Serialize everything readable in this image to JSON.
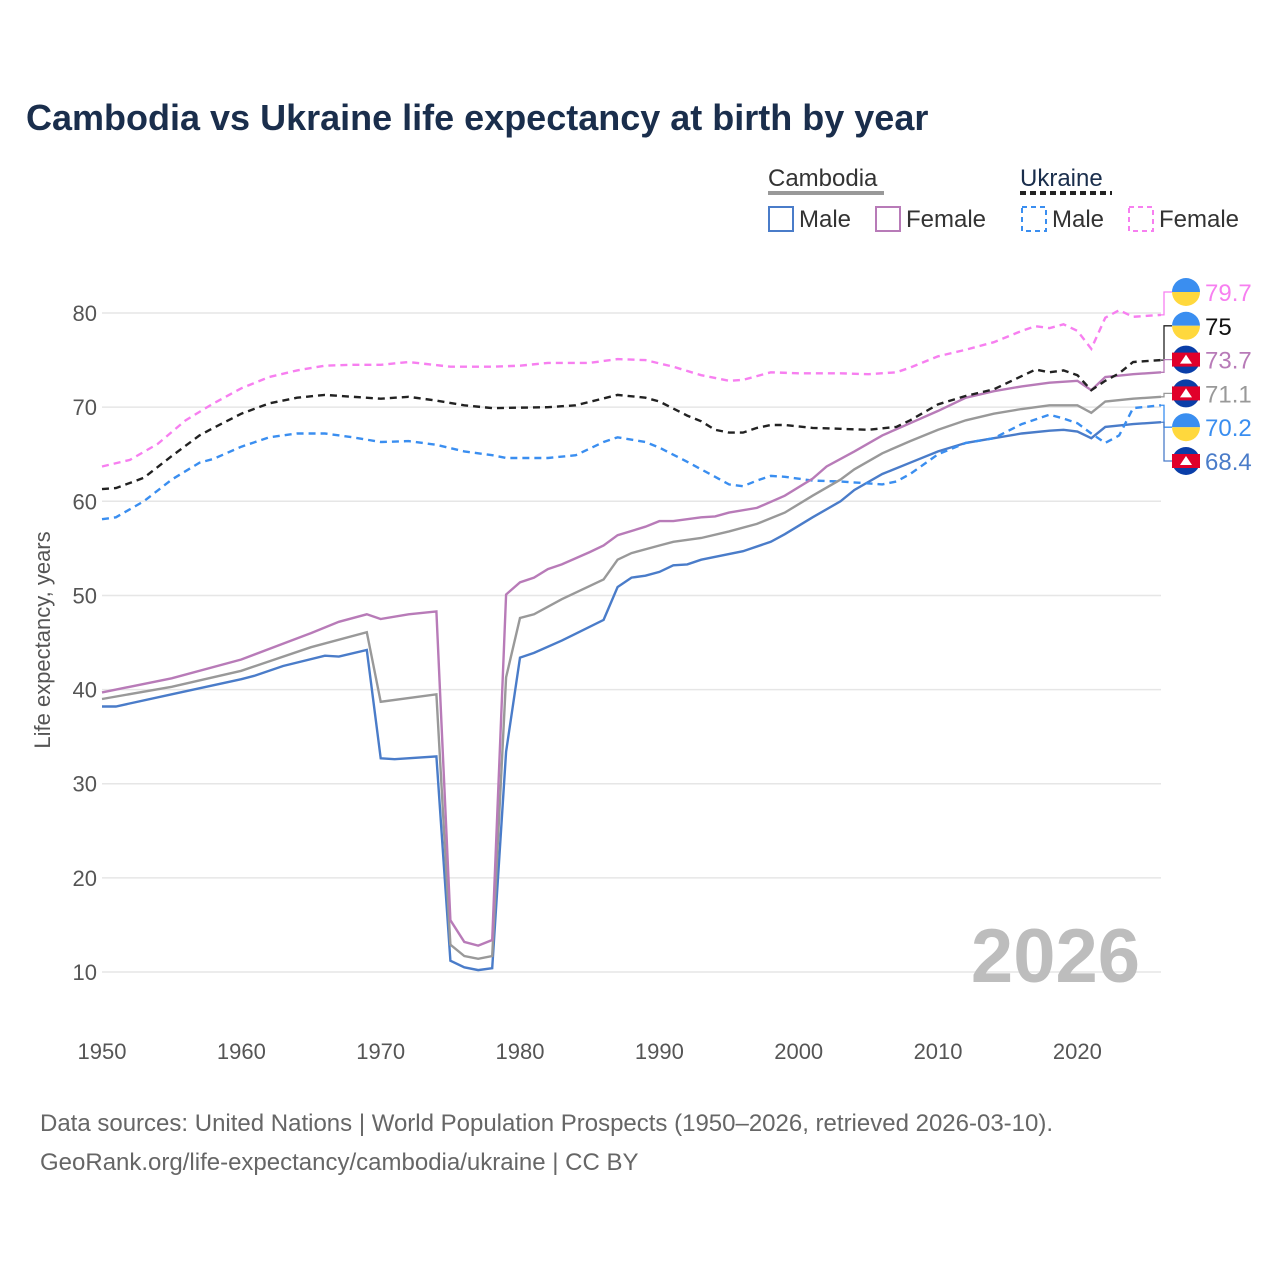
{
  "chart_data": {
    "type": "line",
    "title": "Cambodia vs Ukraine life expectancy at birth by year",
    "ylabel": "Life expectancy, years",
    "xlabel": "",
    "xlim": [
      1950,
      2026
    ],
    "ylim": [
      5,
      85
    ],
    "xticks": [
      "1950",
      "1960",
      "1970",
      "1980",
      "1990",
      "2000",
      "2010",
      "2020"
    ],
    "yticks": [
      "10",
      "20",
      "30",
      "40",
      "50",
      "60",
      "70",
      "80"
    ],
    "watermark_year": "2026",
    "legend": {
      "group1": "Cambodia",
      "group2": "Ukraine",
      "male": "Male",
      "female": "Female",
      "placement": "top-right"
    },
    "series": [
      {
        "name": "Ukraine Female",
        "color": "#f77ff0",
        "dash": true,
        "end_label": "79.7",
        "flag": "ukraine",
        "x": [
          1950,
          1952,
          1954,
          1956,
          1958,
          1960,
          1962,
          1964,
          1966,
          1968,
          1970,
          1972,
          1975,
          1978,
          1980,
          1982,
          1985,
          1987,
          1989,
          1991,
          1993,
          1995,
          1996,
          1998,
          2000,
          2003,
          2005,
          2007,
          2008,
          2010,
          2012,
          2014,
          2016,
          2017,
          2018,
          2019,
          2020,
          2021,
          2022,
          2023,
          2024,
          2026
        ],
        "y": [
          63.7,
          64.4,
          66.1,
          68.6,
          70.4,
          72,
          73.2,
          73.9,
          74.4,
          74.5,
          74.5,
          74.8,
          74.3,
          74.3,
          74.4,
          74.7,
          74.7,
          75.1,
          75,
          74.3,
          73.4,
          72.8,
          72.9,
          73.7,
          73.6,
          73.6,
          73.5,
          73.7,
          74.2,
          75.4,
          76.1,
          76.9,
          78.1,
          78.6,
          78.4,
          78.8,
          78.1,
          76.2,
          79.5,
          80.3,
          79.6,
          79.8
        ]
      },
      {
        "name": "Ukraine",
        "color": "#222222",
        "dash": true,
        "end_label": "75",
        "flag": "ukraine",
        "x": [
          1950,
          1951,
          1953,
          1955,
          1957,
          1958,
          1960,
          1962,
          1964,
          1966,
          1968,
          1970,
          1972,
          1974,
          1976,
          1978,
          1982,
          1984,
          1987,
          1989,
          1990,
          1992,
          1993,
          1994,
          1995,
          1996,
          1997,
          1998,
          1999,
          2001,
          2003,
          2005,
          2007,
          2008,
          2010,
          2012,
          2014,
          2016,
          2017,
          2018,
          2019,
          2020,
          2021,
          2022,
          2023,
          2024,
          2026
        ],
        "y": [
          61.3,
          61.4,
          62.5,
          64.8,
          67,
          67.8,
          69.3,
          70.4,
          71,
          71.3,
          71.1,
          70.9,
          71.1,
          70.7,
          70.2,
          69.9,
          70,
          70.2,
          71.3,
          71,
          70.6,
          69.1,
          68.5,
          67.6,
          67.3,
          67.3,
          67.8,
          68.1,
          68.1,
          67.8,
          67.7,
          67.6,
          67.9,
          68.6,
          70.3,
          71.2,
          71.9,
          73.3,
          74,
          73.7,
          73.9,
          73.4,
          71.8,
          72.8,
          73.6,
          74.8,
          75
        ]
      },
      {
        "name": "Cambodia Female",
        "color": "#b87bb8",
        "dash": false,
        "end_label": "73.7",
        "flag": "cambodia",
        "x": [
          1950,
          1955,
          1960,
          1965,
          1967,
          1969,
          1970,
          1972,
          1974,
          1975,
          1976,
          1977,
          1978,
          1979,
          1980,
          1981,
          1982,
          1983,
          1985,
          1986,
          1987,
          1989,
          1990,
          1991,
          1993,
          1994,
          1995,
          1997,
          1999,
          2001,
          2002,
          2004,
          2006,
          2008,
          2010,
          2012,
          2014,
          2016,
          2018,
          2020,
          2021,
          2022,
          2024,
          2026
        ],
        "y": [
          39.7,
          41.2,
          43.2,
          46,
          47.2,
          48,
          47.5,
          48,
          48.3,
          15.5,
          13.2,
          12.8,
          13.4,
          50.1,
          51.4,
          51.9,
          52.8,
          53.3,
          54.6,
          55.3,
          56.4,
          57.3,
          57.9,
          57.9,
          58.3,
          58.4,
          58.8,
          59.3,
          60.6,
          62.4,
          63.7,
          65.3,
          67,
          68.3,
          69.6,
          71,
          71.7,
          72.2,
          72.6,
          72.8,
          71.8,
          73.2,
          73.5,
          73.7
        ]
      },
      {
        "name": "Cambodia",
        "color": "#999999",
        "dash": false,
        "end_label": "71.1",
        "flag": "cambodia",
        "x": [
          1950,
          1955,
          1960,
          1965,
          1969,
          1970,
          1974,
          1975,
          1976,
          1977,
          1978,
          1979,
          1980,
          1981,
          1983,
          1986,
          1987,
          1988,
          1990,
          1991,
          1993,
          1995,
          1997,
          1999,
          2001,
          2003,
          2004,
          2006,
          2008,
          2010,
          2012,
          2014,
          2016,
          2018,
          2020,
          2021,
          2022,
          2024,
          2026
        ],
        "y": [
          39,
          40.3,
          42,
          44.5,
          46.1,
          38.7,
          39.5,
          12.9,
          11.7,
          11.4,
          11.7,
          41.3,
          47.6,
          48,
          49.6,
          51.7,
          53.8,
          54.5,
          55.3,
          55.7,
          56.1,
          56.8,
          57.6,
          58.8,
          60.6,
          62.3,
          63.4,
          65.1,
          66.4,
          67.6,
          68.6,
          69.3,
          69.8,
          70.2,
          70.2,
          69.4,
          70.6,
          70.9,
          71.1
        ]
      },
      {
        "name": "Ukraine Male",
        "color": "#3a8ef0",
        "dash": true,
        "end_label": "70.2",
        "flag": "ukraine",
        "x": [
          1950,
          1951,
          1953,
          1955,
          1957,
          1958,
          1960,
          1962,
          1964,
          1966,
          1968,
          1970,
          1972,
          1974,
          1976,
          1978,
          1979,
          1982,
          1984,
          1986,
          1987,
          1989,
          1990,
          1992,
          1994,
          1995,
          1996,
          1997,
          1998,
          1999,
          2001,
          2003,
          2005,
          2006,
          2007,
          2008,
          2010,
          2012,
          2014,
          2016,
          2018,
          2019,
          2020,
          2021,
          2022,
          2023,
          2024,
          2026
        ],
        "y": [
          58.1,
          58.3,
          60,
          62.3,
          64.1,
          64.5,
          65.8,
          66.8,
          67.2,
          67.2,
          66.8,
          66.3,
          66.4,
          66,
          65.3,
          64.9,
          64.6,
          64.6,
          64.9,
          66.3,
          66.8,
          66.3,
          65.7,
          64.2,
          62.6,
          61.8,
          61.6,
          62.2,
          62.7,
          62.6,
          62.2,
          62.1,
          61.9,
          61.8,
          62.1,
          62.9,
          65,
          66.2,
          66.7,
          68.2,
          69.2,
          68.8,
          68.3,
          67.2,
          66.2,
          67,
          69.9,
          70.2
        ]
      },
      {
        "name": "Cambodia Male",
        "color": "#4a7cc9",
        "dash": false,
        "end_label": "68.4",
        "flag": "cambodia",
        "x": [
          1950,
          1951,
          1955,
          1960,
          1961,
          1963,
          1966,
          1967,
          1969,
          1970,
          1971,
          1974,
          1975,
          1976,
          1977,
          1978,
          1979,
          1980,
          1981,
          1983,
          1986,
          1987,
          1988,
          1989,
          1990,
          1991,
          1992,
          1993,
          1996,
          1998,
          1999,
          2001,
          2003,
          2004,
          2006,
          2008,
          2010,
          2012,
          2014,
          2016,
          2018,
          2019,
          2020,
          2021,
          2022,
          2024,
          2026
        ],
        "y": [
          38.2,
          38.2,
          39.5,
          41.1,
          41.5,
          42.5,
          43.6,
          43.5,
          44.2,
          32.7,
          32.6,
          32.9,
          11.2,
          10.5,
          10.2,
          10.4,
          33.4,
          43.4,
          43.9,
          45.2,
          47.4,
          50.9,
          51.9,
          52.1,
          52.5,
          53.2,
          53.3,
          53.8,
          54.7,
          55.7,
          56.5,
          58.3,
          60,
          61.2,
          62.9,
          64.1,
          65.3,
          66.2,
          66.7,
          67.2,
          67.5,
          67.6,
          67.4,
          66.7,
          67.9,
          68.2,
          68.4
        ]
      }
    ]
  },
  "footer": {
    "line1": "Data sources: United Nations | World Population Prospects (1950–2026, retrieved 2026-03-10).",
    "line2": "GeoRank.org/life-expectancy/cambodia/ukraine | CC BY"
  }
}
